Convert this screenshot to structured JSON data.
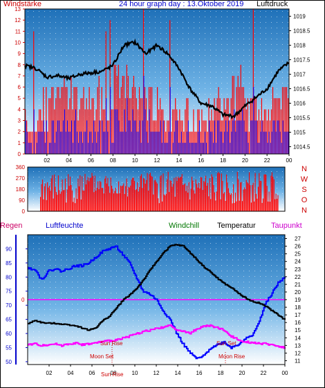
{
  "header": {
    "wind_label": "Windstärke",
    "title": "24 hour graph day : 13.Oktober 2019",
    "pressure_label": "Luftdruck"
  },
  "labels": {
    "regen": "Regen",
    "luftfeuchte": "Luftfeuchte",
    "windchill": "Windchill",
    "temperatur": "Temperatur",
    "taupunkt": "Taupunkt",
    "sun_rise": "Sun Rise",
    "sun_set": "Sun Set",
    "moon_set": "Moon Set",
    "moon_rise": "Moon Rise",
    "sun_rise_time": "Sun Rise",
    "rain_zero": "0"
  },
  "colors": {
    "wind_gust": "#ff0000",
    "wind_avg": "#0000ff",
    "pressure": "#000000",
    "direction": "#ff0000",
    "humidity": "#0000ff",
    "temperature": "#000000",
    "dewpoint": "#ff00ff",
    "plot_top": "#1e70b8",
    "plot_bottom": "#ffffff"
  },
  "chart_data": [
    {
      "type": "bar",
      "name": "wind_pressure",
      "x_ticks": [
        "02",
        "04",
        "06",
        "08",
        "10",
        "12",
        "14",
        "16",
        "18",
        "20",
        "22",
        "00"
      ],
      "left_axis": {
        "label": "Windstärke",
        "ticks": [
          0,
          1,
          2,
          3,
          4,
          5,
          6,
          7,
          8,
          9,
          10,
          11,
          12,
          13
        ],
        "ylim": [
          0,
          13
        ]
      },
      "right_axis": {
        "label": "Luftdruck",
        "ticks": [
          1014.5,
          1015,
          1015.5,
          1016,
          1016.5,
          1017,
          1017.5,
          1018,
          1018.5,
          1019
        ],
        "ylim": [
          1014.25,
          1019.25
        ]
      },
      "pressure_hourly": [
        1017.3,
        1017.2,
        1016.9,
        1016.95,
        1016.85,
        1017.0,
        1017.05,
        1017.1,
        1017.3,
        1018.0,
        1018.1,
        1017.7,
        1018.0,
        1017.7,
        1017.2,
        1016.5,
        1016.0,
        1015.9,
        1015.6,
        1015.55,
        1015.9,
        1016.2,
        1016.5,
        1017.1,
        1017.4
      ]
    },
    {
      "type": "bar",
      "name": "wind_direction",
      "x_ticks": [
        "02",
        "04",
        "06",
        "08",
        "10",
        "12",
        "14",
        "16",
        "18",
        "20",
        "22",
        "00"
      ],
      "left_axis": {
        "ticks": [
          0,
          90,
          180,
          270,
          360
        ],
        "ylim": [
          0,
          360
        ]
      },
      "right_labels": [
        "N",
        "W",
        "S",
        "O",
        "N"
      ]
    },
    {
      "type": "line",
      "name": "humidity_temperature",
      "x_ticks": [
        "02",
        "04",
        "06",
        "08",
        "10",
        "12",
        "14",
        "16",
        "18",
        "20",
        "22",
        "00"
      ],
      "left_axis": {
        "ticks": [
          50,
          55,
          60,
          65,
          70,
          75,
          80,
          85,
          90
        ],
        "ylim": [
          49,
          95
        ]
      },
      "right_axis": {
        "ticks": [
          11,
          12,
          13,
          14,
          15,
          16,
          17,
          18,
          19,
          20,
          21,
          22,
          23,
          24,
          25,
          26,
          27
        ],
        "ylim": [
          10.5,
          27.5
        ]
      },
      "series": [
        {
          "name": "Luftfeuchte",
          "values": [
            83,
            83,
            79,
            82,
            83,
            82,
            83,
            84,
            84,
            85,
            87,
            89,
            90,
            91,
            88,
            85,
            80,
            75,
            74,
            72,
            68,
            65,
            60,
            56,
            53,
            51,
            52,
            55,
            56,
            57,
            55,
            56,
            58,
            59,
            63,
            70,
            74,
            78,
            80
          ]
        },
        {
          "name": "Temperatur",
          "values": [
            15.8,
            16.3,
            16.0,
            15.9,
            15.9,
            15.8,
            15.7,
            15.6,
            15.3,
            15.0,
            15.3,
            16.2,
            16.8,
            17.8,
            18.9,
            19.6,
            20.4,
            21.5,
            22.8,
            24.0,
            25.1,
            26.0,
            26.2,
            26.0,
            25.1,
            24.2,
            23.3,
            22.6,
            21.8,
            21.1,
            20.6,
            19.9,
            19.3,
            18.8,
            18.6,
            18.2,
            17.6,
            17.0,
            16.3
          ]
        },
        {
          "name": "Taupunkt",
          "values": [
            13.1,
            13.2,
            13.0,
            13.1,
            13.2,
            13.0,
            13.2,
            13.3,
            13.1,
            13.2,
            13.3,
            13.5,
            13.6,
            13.7,
            14.0,
            14.2,
            14.5,
            14.8,
            15.0,
            15.2,
            15.4,
            15.6,
            15.1,
            14.8,
            14.6,
            15.2,
            15.5,
            15.6,
            15.3,
            15.0,
            14.2,
            13.8,
            13.5,
            13.4,
            13.3,
            13.2,
            13.1,
            12.9,
            12.7
          ]
        }
      ]
    }
  ]
}
